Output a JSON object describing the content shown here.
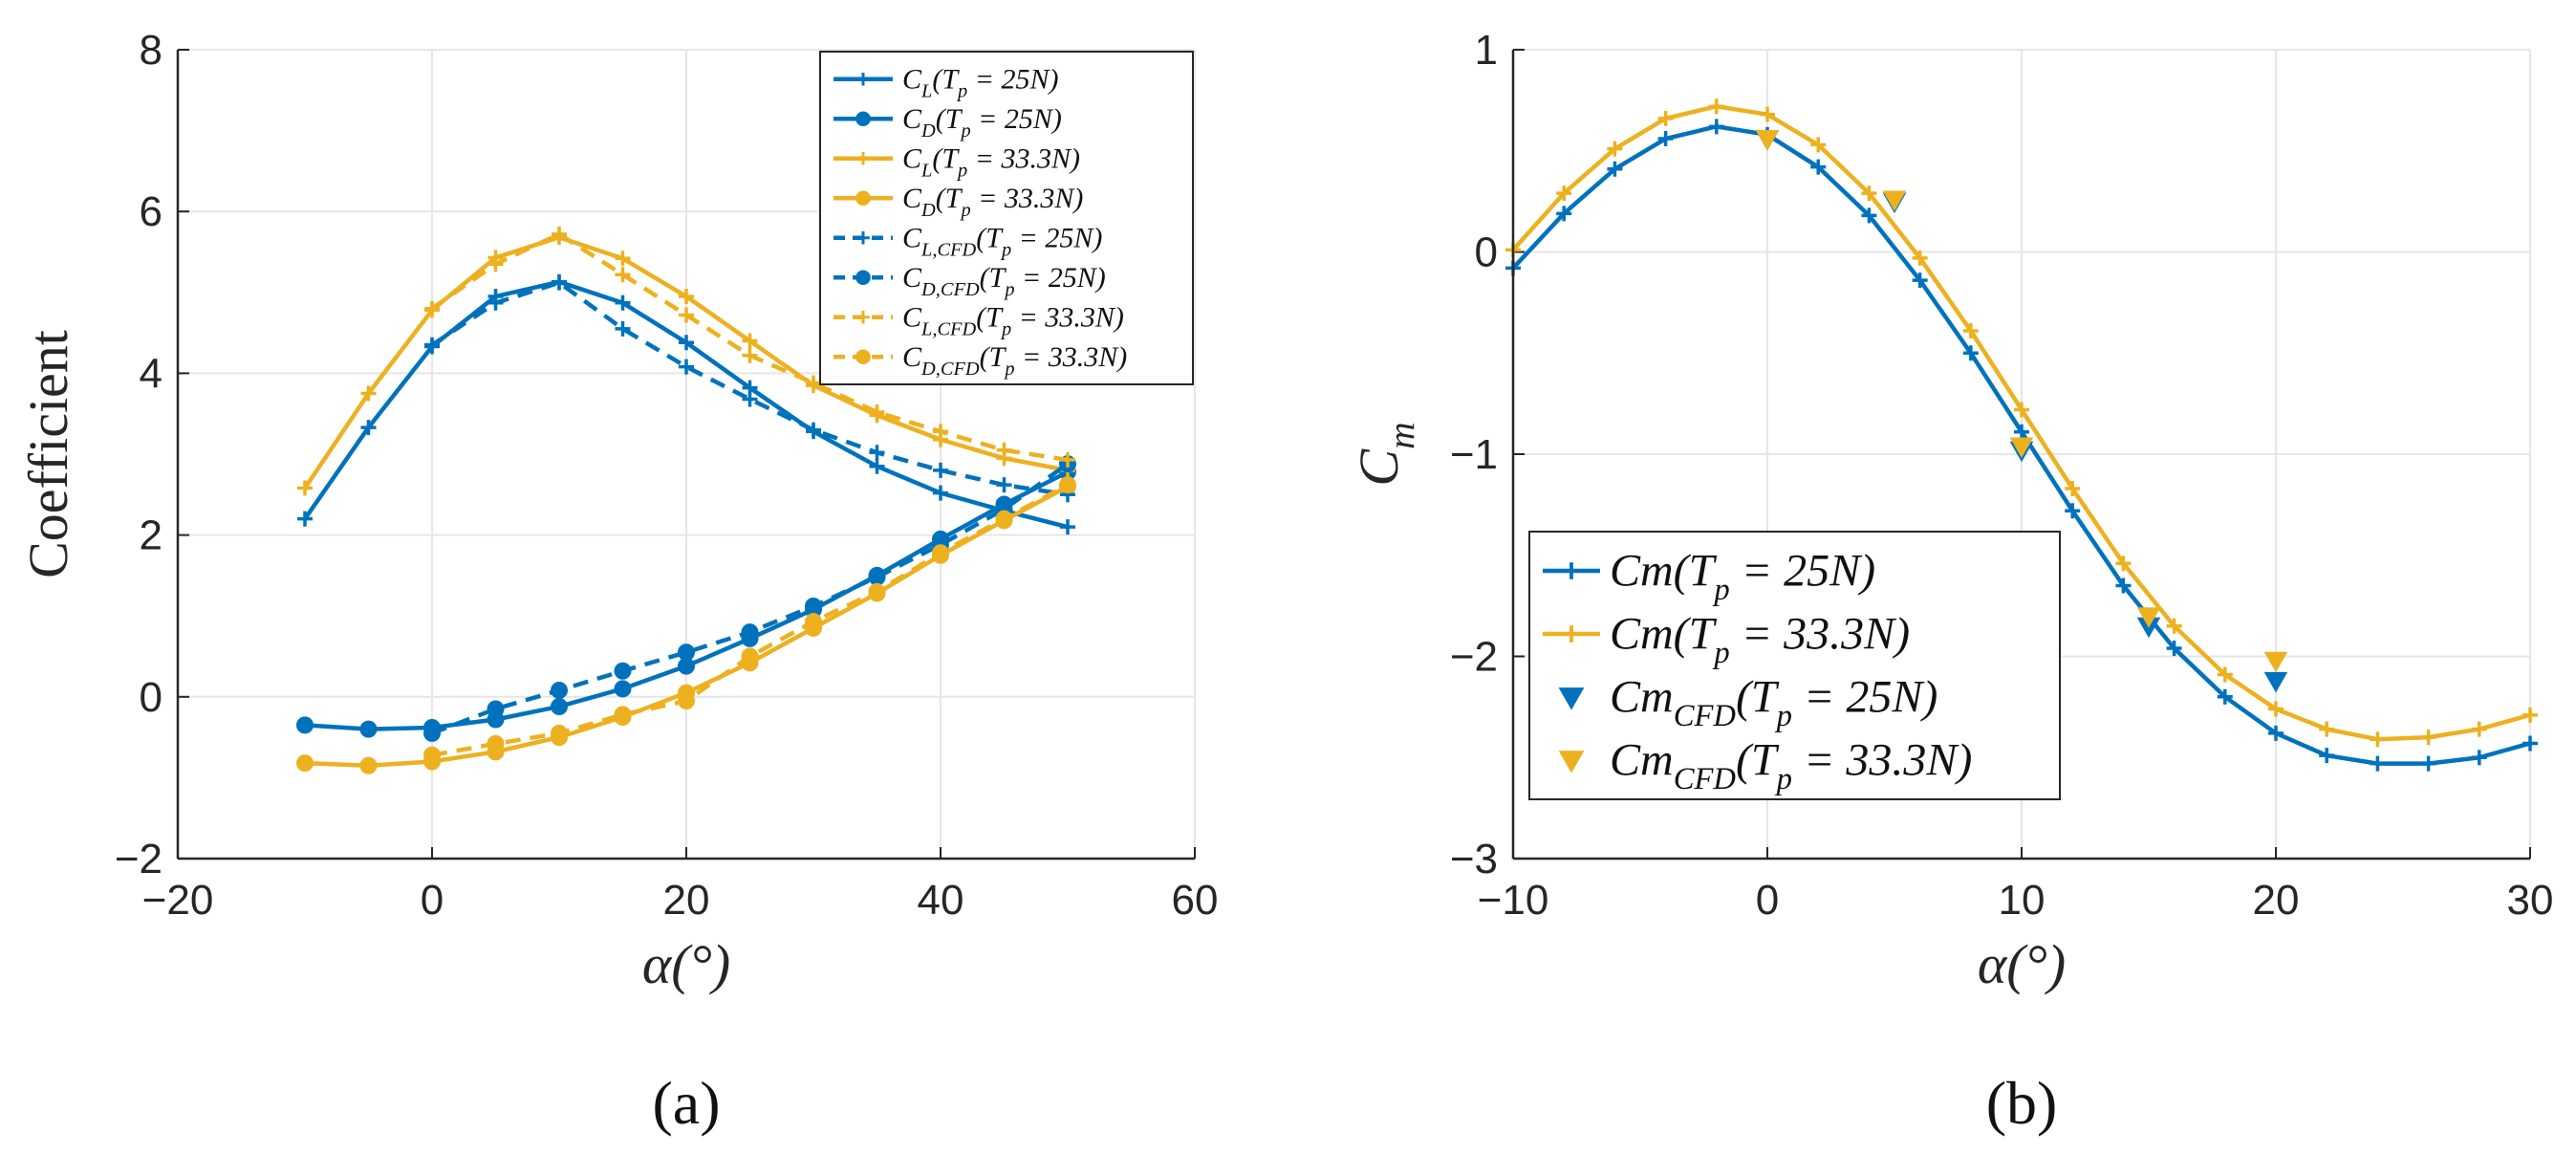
{
  "colors": {
    "blue": "#0072BD",
    "orange": "#EDB120",
    "grid": "#e6e6e6",
    "axis": "#262626"
  },
  "chart_data": [
    {
      "type": "line",
      "panel_label": "(a)",
      "xlabel": "α(°)",
      "ylabel": "Coefficient",
      "xlim": [
        -20,
        60
      ],
      "ylim": [
        -2,
        8
      ],
      "xticks": [
        "−20",
        "0",
        "20",
        "40",
        "60"
      ],
      "yticks": [
        "−2",
        "0",
        "2",
        "4",
        "6",
        "8"
      ],
      "grid": true,
      "legend_position": "top-right",
      "x": [
        -10,
        -5,
        0,
        5,
        10,
        15,
        20,
        25,
        30,
        35,
        40,
        45,
        50
      ],
      "series": [
        {
          "name": "C_L(T_p = 25N)",
          "color": "blue",
          "dash": "solid",
          "marker": "plus",
          "x": [
            -10,
            -5,
            0,
            5,
            10,
            15,
            20,
            25,
            30,
            35,
            40,
            45,
            50
          ],
          "values": [
            2.2,
            3.33,
            4.33,
            4.95,
            5.13,
            4.87,
            4.38,
            3.82,
            3.28,
            2.85,
            2.52,
            2.3,
            2.1
          ]
        },
        {
          "name": "C_D(T_p = 25N)",
          "color": "blue",
          "dash": "solid",
          "marker": "circle",
          "x": [
            -10,
            -5,
            0,
            5,
            10,
            15,
            20,
            25,
            30,
            35,
            40,
            45,
            50
          ],
          "values": [
            -0.35,
            -0.4,
            -0.38,
            -0.28,
            -0.12,
            0.1,
            0.38,
            0.72,
            1.08,
            1.5,
            1.95,
            2.38,
            2.78
          ]
        },
        {
          "name": "C_L(T_p = 33.3N)",
          "color": "orange",
          "dash": "solid",
          "marker": "plus",
          "x": [
            -10,
            -5,
            0,
            5,
            10,
            15,
            20,
            25,
            30,
            35,
            40,
            45,
            50
          ],
          "values": [
            2.58,
            3.75,
            4.78,
            5.43,
            5.68,
            5.42,
            4.95,
            4.4,
            3.85,
            3.48,
            3.18,
            2.95,
            2.8
          ]
        },
        {
          "name": "C_D(T_p = 33.3N)",
          "color": "orange",
          "dash": "solid",
          "marker": "circle",
          "x": [
            -10,
            -5,
            0,
            5,
            10,
            15,
            20,
            25,
            30,
            35,
            40,
            45,
            50
          ],
          "values": [
            -0.82,
            -0.85,
            -0.8,
            -0.68,
            -0.5,
            -0.25,
            0.05,
            0.42,
            0.85,
            1.28,
            1.75,
            2.18,
            2.6
          ]
        },
        {
          "name": "C_L,CFD(T_p = 25N)",
          "color": "blue",
          "dash": "dashed",
          "marker": "plus",
          "x": [
            0,
            5,
            10,
            15,
            20,
            25,
            30,
            35,
            40,
            45,
            50
          ],
          "values": [
            4.35,
            4.87,
            5.12,
            4.55,
            4.08,
            3.68,
            3.3,
            3.02,
            2.8,
            2.62,
            2.5
          ]
        },
        {
          "name": "C_D,CFD(T_p = 25N)",
          "color": "blue",
          "dash": "dashed",
          "marker": "circle",
          "x": [
            0,
            5,
            10,
            15,
            20,
            25,
            30,
            35,
            40,
            45,
            50
          ],
          "values": [
            -0.45,
            -0.15,
            0.08,
            0.32,
            0.55,
            0.8,
            1.12,
            1.48,
            1.88,
            2.32,
            2.88
          ]
        },
        {
          "name": "C_L,CFD(T_p = 33.3N)",
          "color": "orange",
          "dash": "dashed",
          "marker": "plus",
          "x": [
            0,
            5,
            10,
            15,
            20,
            25,
            30,
            35,
            40,
            45,
            50
          ],
          "values": [
            4.8,
            5.35,
            5.72,
            5.22,
            4.72,
            4.22,
            3.88,
            3.52,
            3.28,
            3.05,
            2.93
          ]
        },
        {
          "name": "C_D,CFD(T_p = 33.3N)",
          "color": "orange",
          "dash": "dashed",
          "marker": "circle",
          "x": [
            0,
            5,
            10,
            15,
            20,
            25,
            30,
            35,
            40,
            45,
            50
          ],
          "values": [
            -0.72,
            -0.58,
            -0.45,
            -0.22,
            -0.05,
            0.5,
            0.93,
            1.3,
            1.78,
            2.2,
            2.62
          ]
        }
      ]
    },
    {
      "type": "line",
      "panel_label": "(b)",
      "xlabel": "α(°)",
      "ylabel": "C_m",
      "xlim": [
        -10,
        30
      ],
      "ylim": [
        -3,
        1
      ],
      "xticks": [
        "−10",
        "0",
        "10",
        "20",
        "30"
      ],
      "yticks": [
        "−3",
        "−2",
        "−1",
        "0",
        "1"
      ],
      "grid": true,
      "legend_position": "bottom-left",
      "series": [
        {
          "name": "Cm(T_p = 25N)",
          "color": "blue",
          "dash": "solid",
          "marker": "plus",
          "x": [
            -10,
            -8,
            -6,
            -4,
            -2,
            0,
            2,
            4,
            6,
            8,
            10,
            12,
            14,
            16,
            18,
            20,
            22,
            24,
            26,
            28,
            30
          ],
          "values": [
            -0.08,
            0.19,
            0.41,
            0.56,
            0.62,
            0.58,
            0.42,
            0.18,
            -0.14,
            -0.5,
            -0.89,
            -1.28,
            -1.65,
            -1.96,
            -2.2,
            -2.38,
            -2.49,
            -2.53,
            -2.53,
            -2.5,
            -2.43
          ]
        },
        {
          "name": "Cm(T_p = 33.3N)",
          "color": "orange",
          "dash": "solid",
          "marker": "plus",
          "x": [
            -10,
            -8,
            -6,
            -4,
            -2,
            0,
            2,
            4,
            6,
            8,
            10,
            12,
            14,
            16,
            18,
            20,
            22,
            24,
            26,
            28,
            30
          ],
          "values": [
            0.01,
            0.29,
            0.51,
            0.66,
            0.72,
            0.68,
            0.53,
            0.29,
            -0.03,
            -0.39,
            -0.78,
            -1.17,
            -1.54,
            -1.85,
            -2.09,
            -2.26,
            -2.36,
            -2.41,
            -2.4,
            -2.36,
            -2.29
          ]
        },
        {
          "name": "Cm_CFD(T_p = 25N)",
          "color": "blue",
          "dash": "none",
          "marker": "triangle-down",
          "x": [
            0,
            5,
            10,
            15,
            20
          ],
          "values": [
            0.56,
            0.25,
            -0.98,
            -1.85,
            -2.12
          ]
        },
        {
          "name": "Cm_CFD(T_p = 33.3N)",
          "color": "orange",
          "dash": "none",
          "marker": "triangle-down",
          "x": [
            0,
            5,
            10,
            15,
            20
          ],
          "values": [
            0.56,
            0.26,
            -0.96,
            -1.8,
            -2.02
          ]
        }
      ]
    }
  ]
}
